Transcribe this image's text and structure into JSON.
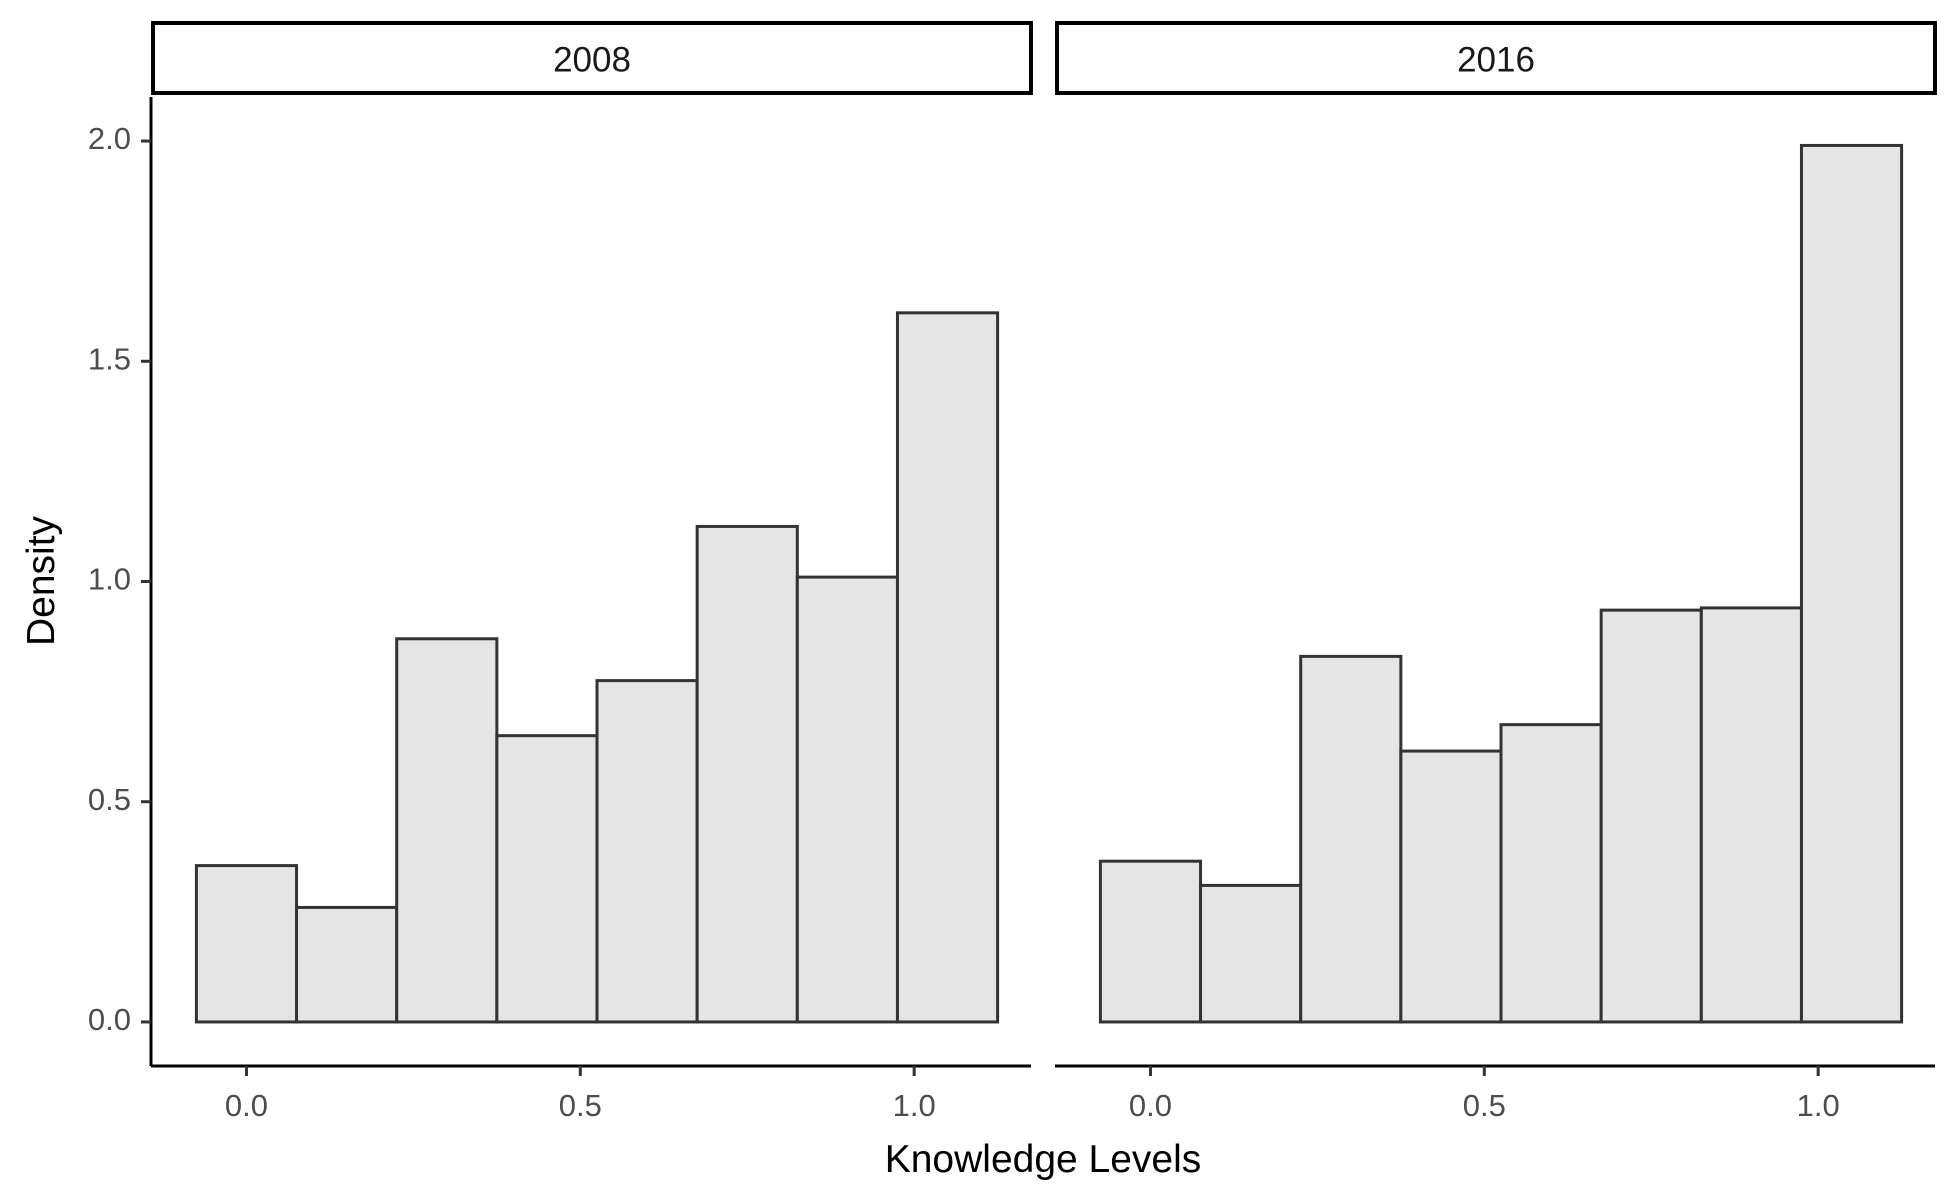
{
  "chart_data": {
    "type": "bar",
    "subtype": "faceted-histogram",
    "xlabel": "Knowledge Levels",
    "ylabel": "Density",
    "xlim": [
      -0.14,
      1.175
    ],
    "ylim": [
      -0.1,
      2.1
    ],
    "x_ticks": [
      0.0,
      0.5,
      1.0
    ],
    "x_tick_labels": [
      "0.0",
      "0.5",
      "1.0"
    ],
    "y_ticks": [
      0.0,
      0.5,
      1.0,
      1.5,
      2.0
    ],
    "y_tick_labels": [
      "0.0",
      "0.5",
      "1.0",
      "1.5",
      "2.0"
    ],
    "bin_width": 0.15,
    "bin_centers": [
      0.0,
      0.15,
      0.3,
      0.45,
      0.6,
      0.75,
      0.9,
      1.05
    ],
    "grid": false,
    "bar_fill": "#e5e5e5",
    "bar_outline": "#333333",
    "panels": [
      {
        "strip_label": "2008",
        "values": [
          0.355,
          0.26,
          0.87,
          0.65,
          0.775,
          1.125,
          1.01,
          1.61
        ]
      },
      {
        "strip_label": "2016",
        "values": [
          0.365,
          0.31,
          0.83,
          0.615,
          0.675,
          0.935,
          0.94,
          1.99
        ]
      }
    ]
  }
}
